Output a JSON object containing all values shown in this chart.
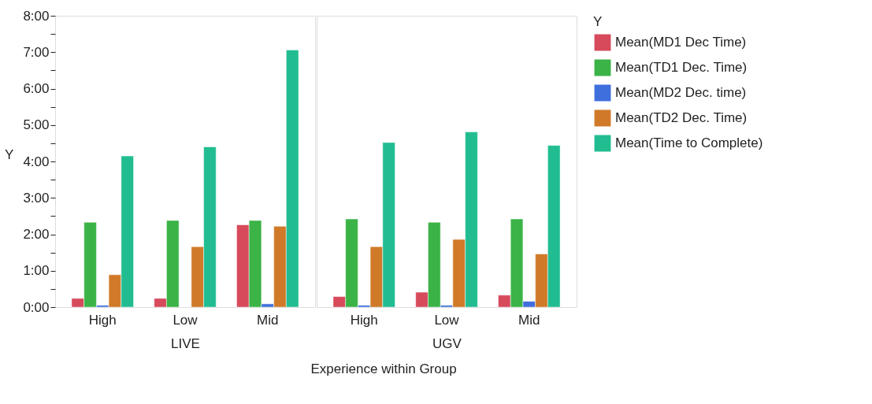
{
  "chart_data": [
    {
      "type": "bar",
      "xlabel": "LIVE",
      "ylabel": "Y",
      "legend_title": "Y",
      "legend": "right",
      "annotations": [
        "Experience within Group"
      ],
      "categories": [
        "High",
        "Low",
        "Mid"
      ],
      "ylim": [
        0,
        8
      ],
      "yticks": [
        {
          "value": 0,
          "label": "0:00"
        },
        {
          "value": 0.5,
          "label": null
        },
        {
          "value": 1,
          "label": "1:00"
        },
        {
          "value": 1.5,
          "label": null
        },
        {
          "value": 2,
          "label": "2:00"
        },
        {
          "value": 2.5,
          "label": null
        },
        {
          "value": 3,
          "label": "3:00"
        },
        {
          "value": 3.5,
          "label": null
        },
        {
          "value": 4,
          "label": "4:00"
        },
        {
          "value": 4.5,
          "label": null
        },
        {
          "value": 5,
          "label": "5:00"
        },
        {
          "value": 5.5,
          "label": null
        },
        {
          "value": 6,
          "label": "6:00"
        },
        {
          "value": 6.5,
          "label": null
        },
        {
          "value": 7,
          "label": "7:00"
        },
        {
          "value": 7.5,
          "label": null
        },
        {
          "value": 8,
          "label": "8:00"
        }
      ],
      "series": [
        {
          "name": "Mean(MD1 Dec Time)",
          "color": "#d64a5b",
          "values": [
            0.24,
            0.24,
            2.26
          ]
        },
        {
          "name": "Mean(TD1 Dec. Time)",
          "color": "#3bb346",
          "values": [
            2.33,
            2.38,
            2.38
          ]
        },
        {
          "name": "Mean(MD2 Dec. time)",
          "color": "#3f6fdc",
          "values": [
            0.05,
            null,
            0.09
          ]
        },
        {
          "name": "Mean(TD2 Dec. Time)",
          "color": "#d07a29",
          "values": [
            0.89,
            1.66,
            2.22
          ]
        },
        {
          "name": "Mean(Time to Complete)",
          "color": "#21bd91",
          "values": [
            4.15,
            4.4,
            7.06
          ]
        }
      ]
    },
    {
      "type": "bar",
      "xlabel": "UGV",
      "legend": "right",
      "tick_labels": "x",
      "categories": [
        "High",
        "Low",
        "Mid"
      ],
      "ylim": [
        0,
        8
      ],
      "series": [
        {
          "name": "Mean(MD1 Dec Time)",
          "color": "#d64a5b",
          "values": [
            0.29,
            0.41,
            0.33
          ]
        },
        {
          "name": "Mean(TD1 Dec. Time)",
          "color": "#3bb346",
          "values": [
            2.42,
            2.33,
            2.42
          ]
        },
        {
          "name": "Mean(MD2 Dec. time)",
          "color": "#3f6fdc",
          "values": [
            0.05,
            0.05,
            0.16
          ]
        },
        {
          "name": "Mean(TD2 Dec. Time)",
          "color": "#d07a29",
          "values": [
            1.66,
            1.86,
            1.46
          ]
        },
        {
          "name": "Mean(Time to Complete)",
          "color": "#21bd91",
          "values": [
            4.52,
            4.81,
            4.44
          ]
        }
      ]
    }
  ]
}
